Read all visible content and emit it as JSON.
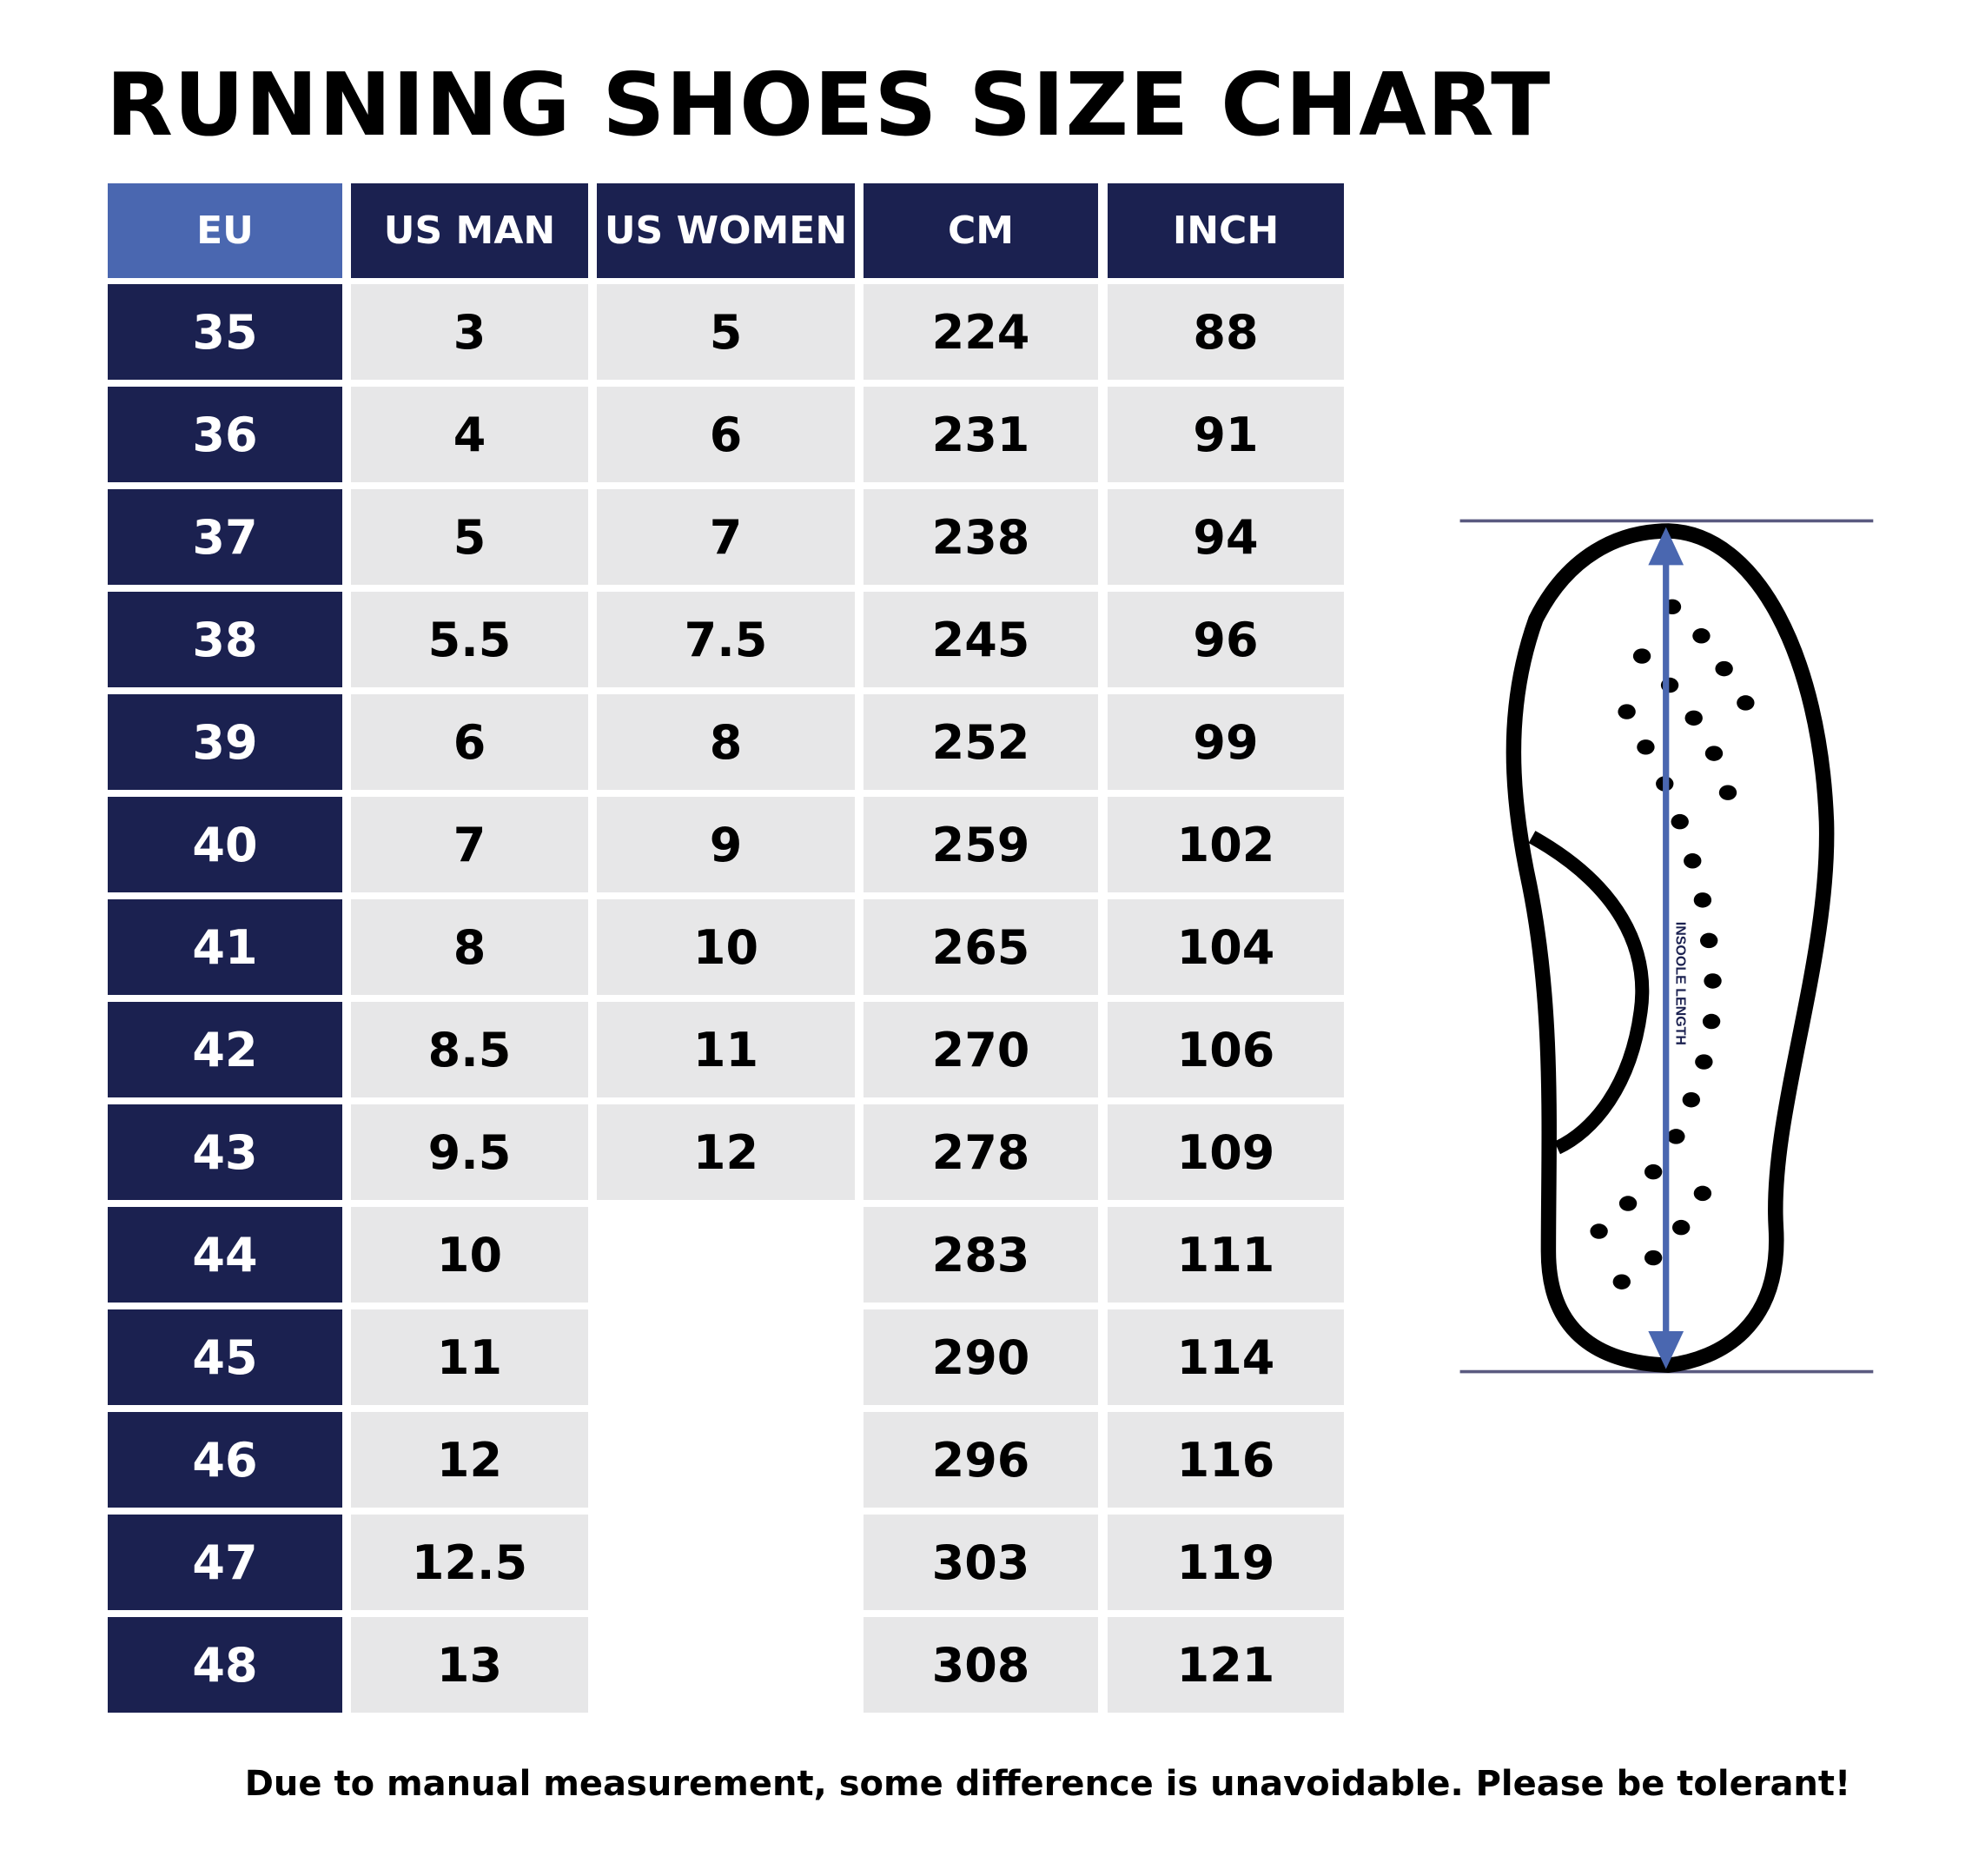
{
  "title": "RUNNING SHOES SIZE CHART",
  "colors": {
    "header_navy": "#1b2150",
    "header_eu": "#4a67b0",
    "cell_gray": "#e7e7e8",
    "arrow_blue": "#4a67b0"
  },
  "table": {
    "headers": [
      "EU",
      "US MAN",
      "US WOMEN",
      "CM",
      "INCH"
    ],
    "rows": [
      [
        "35",
        "3",
        "5",
        "224",
        "88"
      ],
      [
        "36",
        "4",
        "6",
        "231",
        "91"
      ],
      [
        "37",
        "5",
        "7",
        "238",
        "94"
      ],
      [
        "38",
        "5.5",
        "7.5",
        "245",
        "96"
      ],
      [
        "39",
        "6",
        "8",
        "252",
        "99"
      ],
      [
        "40",
        "7",
        "9",
        "259",
        "102"
      ],
      [
        "41",
        "8",
        "10",
        "265",
        "104"
      ],
      [
        "42",
        "8.5",
        "11",
        "270",
        "106"
      ],
      [
        "43",
        "9.5",
        "12",
        "278",
        "109"
      ],
      [
        "44",
        "10",
        "",
        "283",
        "111"
      ],
      [
        "45",
        "11",
        "",
        "290",
        "114"
      ],
      [
        "46",
        "12",
        "",
        "296",
        "116"
      ],
      [
        "47",
        "12.5",
        "",
        "303",
        "119"
      ],
      [
        "48",
        "13",
        "",
        "308",
        "121"
      ]
    ]
  },
  "diagram": {
    "label": "INSOOLE LENGTH",
    "icon": "insole-outline-icon"
  },
  "footer": "Due to manual measurement, some difference is unavoidable. Please be tolerant!"
}
